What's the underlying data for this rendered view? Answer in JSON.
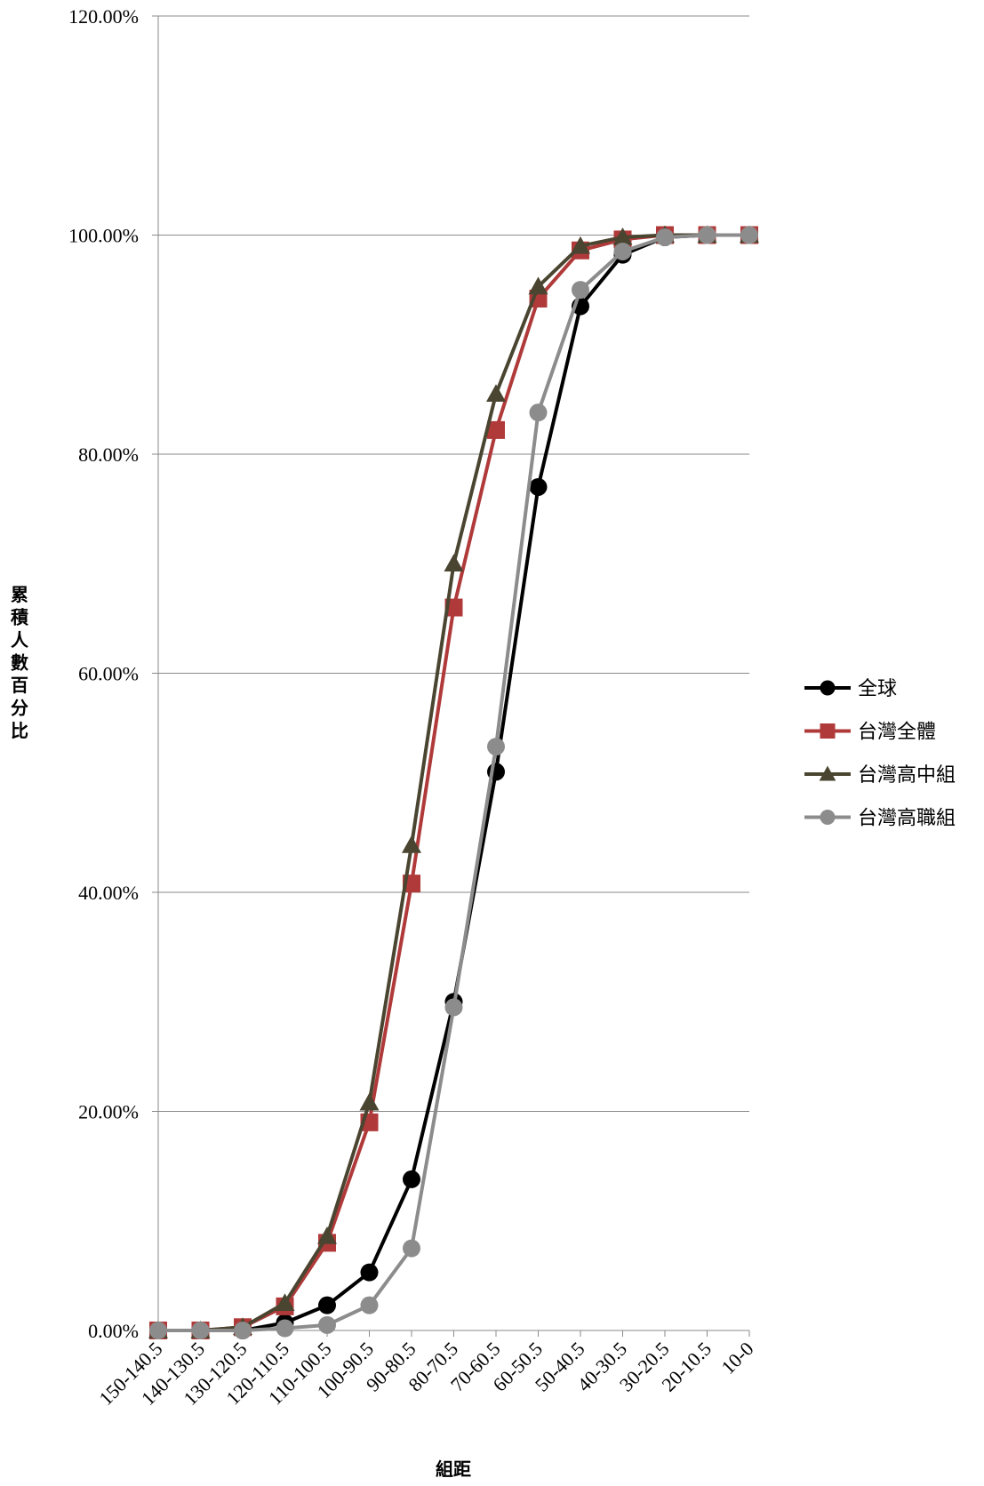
{
  "chart_data": {
    "type": "line",
    "title": "",
    "xlabel": "組距",
    "ylabel": "累積人數百分比",
    "ylim": [
      0,
      120
    ],
    "yticks": [
      "0.00%",
      "20.00%",
      "40.00%",
      "60.00%",
      "80.00%",
      "100.00%",
      "120.00%"
    ],
    "grid": "horizontal",
    "legend_position": "right",
    "categories": [
      "150-140.5",
      "140-130.5",
      "130-120.5",
      "120-110.5",
      "110-100.5",
      "100-90.5",
      "90-80.5",
      "80-70.5",
      "70-60.5",
      "60-50.5",
      "50-40.5",
      "40-30.5",
      "30-20.5",
      "20-10.5",
      "10-0"
    ],
    "series": [
      {
        "name": "全球",
        "color": "#000000",
        "marker": "circle",
        "values": [
          0,
          0,
          0,
          0.7,
          2.3,
          5.3,
          13.8,
          30.0,
          51.0,
          77.0,
          93.5,
          98.2,
          99.8,
          100,
          100
        ]
      },
      {
        "name": "台灣全體",
        "color": "#b03a3a",
        "marker": "square",
        "values": [
          0,
          0,
          0.3,
          2.2,
          8.0,
          19.0,
          40.8,
          66.0,
          82.2,
          94.2,
          98.6,
          99.6,
          100,
          100,
          100
        ]
      },
      {
        "name": "台灣高中組",
        "color": "#4a4530",
        "marker": "triangle",
        "values": [
          0,
          0,
          0.3,
          2.5,
          8.6,
          20.8,
          44.3,
          70.0,
          85.5,
          95.3,
          99.0,
          99.8,
          100,
          100,
          100
        ]
      },
      {
        "name": "台灣高職組",
        "color": "#8c8c8c",
        "marker": "circle",
        "values": [
          0,
          0,
          0,
          0.2,
          0.5,
          2.3,
          7.5,
          29.5,
          53.3,
          83.8,
          95.0,
          98.5,
          99.8,
          100,
          100
        ]
      }
    ]
  }
}
